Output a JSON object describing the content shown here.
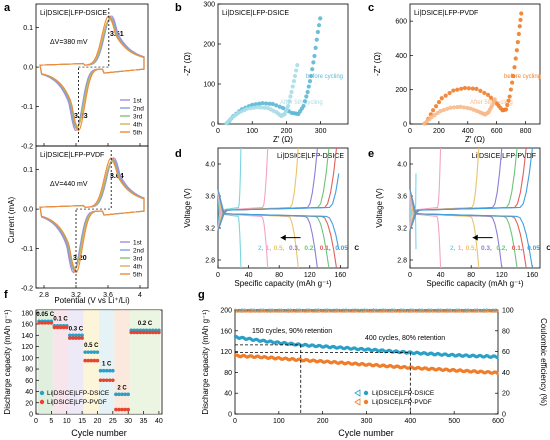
{
  "panels": {
    "a": {
      "label": "a",
      "top_title": "Li|DSICE|LFP-DSICE",
      "top_dv": "ΔV=380 mV",
      "top_peak_hi": "3.61",
      "top_peak_lo": "3.23",
      "bottom_title": "Li|DSICE|LFP-PVDF",
      "bottom_dv": "ΔV=440 mV",
      "bottom_peak_hi": "3.64",
      "bottom_peak_lo": "3.20",
      "ylabel": "Current (mA)",
      "xlabel": "Potential (V vs Li⁺/Li)",
      "legend": [
        "1st",
        "2nd",
        "3rd",
        "4th",
        "5th"
      ],
      "legend_colors": [
        "#a78bd6",
        "#7fa0e0",
        "#8bc07a",
        "#d0b35a",
        "#f08a3c"
      ]
    },
    "b": {
      "label": "b",
      "title": "Li|DSICE|LFP-DSICE",
      "ylabel": "-Z″ (Ω)",
      "xlabel": "Z′ (Ω)",
      "before": "before cycling",
      "after": "After 5th cycling",
      "color_before": "#5bb8d4",
      "color_after": "#a8dde8"
    },
    "c": {
      "label": "c",
      "title": "Li|DSICE|LFP-PVDF",
      "ylabel": "-Z″ (Ω)",
      "xlabel": "Z′ (Ω)",
      "before": "before cycling",
      "after": "After 5th cycling",
      "color_before": "#f07d2a",
      "color_after": "#f7b98a"
    },
    "d": {
      "label": "d",
      "title": "Li|DSICE|LFP-DSICE",
      "ylabel": "Voltage (V)",
      "xlabel": "Specific capacity (mAh g⁻¹)"
    },
    "e": {
      "label": "e",
      "title": "Li|DSICE|LFP-PVDF",
      "ylabel": "Voltage (V)",
      "xlabel": "Specific capacity (mAh g⁻¹)"
    },
    "f": {
      "label": "f",
      "ylabel": "Discharge capacity (mAh g⁻¹)",
      "xlabel": "Cycle number",
      "legend": [
        "Li|DSICE|LFP-DSICE",
        "Li|DSICE|LFP-PVDF"
      ]
    },
    "g": {
      "label": "g",
      "ylabel": "Discharge capacity (mAh g⁻¹)",
      "ylabel2": "Coulombic efficiency (%)",
      "xlabel": "Cycle number",
      "ann1": "150 cycles, 90% retention",
      "ann2": "400 cycles, 80% retention",
      "legend": [
        "Li|DSICE|LFP-DSICE",
        "Li|DSICE|LFP-PVDF"
      ]
    }
  },
  "chart_data": [
    {
      "id": "a-top",
      "type": "line",
      "title": "Li|DSICE|LFP-DSICE",
      "xlabel": "Potential (V vs Li⁺/Li)",
      "ylabel": "Current (mA)",
      "xlim": [
        2.7,
        4.1
      ],
      "ylim": [
        -0.2,
        0.16
      ],
      "xticks": [
        2.8,
        3.2,
        3.6,
        4.0
      ],
      "yticks": [
        -0.2,
        -0.1,
        0.0,
        0.1
      ],
      "annotations": [
        "ΔV=380 mV",
        "3.61",
        "3.23"
      ],
      "series": [
        {
          "name": "1st",
          "peak_ox": [
            3.61,
            0.128
          ],
          "peak_red": [
            3.23,
            -0.168
          ]
        },
        {
          "name": "2nd"
        },
        {
          "name": "3rd"
        },
        {
          "name": "4th"
        },
        {
          "name": "5th"
        }
      ]
    },
    {
      "id": "a-bottom",
      "type": "line",
      "title": "Li|DSICE|LFP-PVDF",
      "xlabel": "Potential (V vs Li⁺/Li)",
      "ylabel": "Current (mA)",
      "xlim": [
        2.7,
        4.1
      ],
      "ylim": [
        -0.2,
        0.16
      ],
      "xticks": [
        2.8,
        3.2,
        3.6,
        4.0
      ],
      "yticks": [
        -0.2,
        -0.1,
        0.0,
        0.1
      ],
      "annotations": [
        "ΔV=440 mV",
        "3.64",
        "3.20"
      ],
      "series": [
        {
          "name": "1st",
          "peak_ox": [
            3.64,
            0.128
          ],
          "peak_red": [
            3.2,
            -0.168
          ]
        },
        {
          "name": "2nd"
        },
        {
          "name": "3rd"
        },
        {
          "name": "4th"
        },
        {
          "name": "5th"
        }
      ]
    },
    {
      "id": "b",
      "type": "scatter",
      "title": "Li|DSICE|LFP-DSICE",
      "xlabel": "Z′ (Ω)",
      "ylabel": "-Z″ (Ω)",
      "xlim": [
        0,
        380
      ],
      "ylim": [
        0,
        300
      ],
      "xticks": [
        0,
        100,
        200,
        300
      ],
      "yticks": [
        0,
        100,
        200,
        300
      ],
      "series": [
        {
          "name": "before cycling",
          "points": [
            [
              28,
              2
            ],
            [
              45,
              20
            ],
            [
              70,
              37
            ],
            [
              100,
              48
            ],
            [
              130,
              52
            ],
            [
              160,
              50
            ],
            [
              190,
              40
            ],
            [
              215,
              28
            ],
            [
              235,
              25
            ],
            [
              250,
              45
            ],
            [
              262,
              80
            ],
            [
              272,
              120
            ],
            [
              282,
              170
            ],
            [
              292,
              230
            ],
            [
              302,
              280
            ]
          ]
        },
        {
          "name": "After 5th cycling",
          "points": [
            [
              25,
              2
            ],
            [
              40,
              15
            ],
            [
              60,
              28
            ],
            [
              85,
              38
            ],
            [
              115,
              42
            ],
            [
              145,
              40
            ],
            [
              170,
              30
            ],
            [
              185,
              20
            ],
            [
              195,
              25
            ],
            [
              205,
              45
            ],
            [
              215,
              80
            ],
            [
              225,
              120
            ],
            [
              235,
              160
            ]
          ]
        }
      ]
    },
    {
      "id": "c",
      "type": "scatter",
      "title": "Li|DSICE|LFP-PVDF",
      "xlabel": "Z′ (Ω)",
      "ylabel": "-Z″ (Ω)",
      "xlim": [
        0,
        900
      ],
      "ylim": [
        0,
        700
      ],
      "xticks": [
        0,
        200,
        400,
        600,
        800
      ],
      "yticks": [
        0,
        200,
        400,
        600
      ],
      "series": [
        {
          "name": "before cycling",
          "points": [
            [
              110,
              5
            ],
            [
              160,
              80
            ],
            [
              220,
              150
            ],
            [
              300,
              195
            ],
            [
              380,
              210
            ],
            [
              460,
              205
            ],
            [
              540,
              170
            ],
            [
              600,
              120
            ],
            [
              640,
              80
            ],
            [
              665,
              85
            ],
            [
              690,
              160
            ],
            [
              715,
              280
            ],
            [
              740,
              430
            ],
            [
              760,
              570
            ],
            [
              775,
              680
            ]
          ]
        },
        {
          "name": "After 5th cycling",
          "points": [
            [
              100,
              3
            ],
            [
              150,
              40
            ],
            [
              210,
              75
            ],
            [
              280,
              95
            ],
            [
              350,
              100
            ],
            [
              420,
              90
            ],
            [
              480,
              70
            ],
            [
              520,
              55
            ],
            [
              545,
              70
            ],
            [
              570,
              110
            ],
            [
              595,
              160
            ]
          ]
        }
      ]
    },
    {
      "id": "d",
      "type": "line",
      "title": "Li|DSICE|LFP-DSICE",
      "xlabel": "Specific capacity (mAh g⁻¹)",
      "ylabel": "Voltage (V)",
      "xlim": [
        0,
        170
      ],
      "ylim": [
        2.7,
        4.2
      ],
      "xticks": [
        0,
        40,
        80,
        120,
        160
      ],
      "yticks": [
        2.8,
        3.2,
        3.6,
        4.0
      ],
      "rate_labels": [
        "2",
        "1",
        "0.5",
        "0.3",
        "0.2",
        "0.1",
        "0.05",
        "C"
      ],
      "series": [
        {
          "name": "2",
          "capacity": 30,
          "color": "#7ad6e3"
        },
        {
          "name": "1",
          "capacity": 65,
          "color": "#f5a3c7"
        },
        {
          "name": "0.5",
          "capacity": 105,
          "color": "#e9c46a"
        },
        {
          "name": "0.3",
          "capacity": 130,
          "color": "#8d7ed8"
        },
        {
          "name": "0.2",
          "capacity": 145,
          "color": "#6fc47a"
        },
        {
          "name": "0.1",
          "capacity": 155,
          "color": "#e0625a"
        },
        {
          "name": "0.05",
          "capacity": 162,
          "color": "#3fa0e0"
        }
      ]
    },
    {
      "id": "e",
      "type": "line",
      "title": "Li|DSICE|LFP-PVDF",
      "xlabel": "Specific capacity (mAh g⁻¹)",
      "ylabel": "Voltage (V)",
      "xlim": [
        0,
        170
      ],
      "ylim": [
        2.7,
        4.2
      ],
      "xticks": [
        0,
        40,
        80,
        120,
        160
      ],
      "yticks": [
        2.8,
        3.2,
        3.6,
        4.0
      ],
      "rate_labels": [
        "2",
        "1",
        "0.5",
        "0.3",
        "0.2",
        "0.1",
        "0.05",
        "C"
      ],
      "series": [
        {
          "name": "2",
          "capacity": 8,
          "color": "#7ad6e3"
        },
        {
          "name": "1",
          "capacity": 40,
          "color": "#f5a3c7"
        },
        {
          "name": "0.5",
          "capacity": 90,
          "color": "#e9c46a"
        },
        {
          "name": "0.3",
          "capacity": 120,
          "color": "#8d7ed8"
        },
        {
          "name": "0.2",
          "capacity": 140,
          "color": "#6fc47a"
        },
        {
          "name": "0.1",
          "capacity": 152,
          "color": "#e0625a"
        },
        {
          "name": "0.05",
          "capacity": 160,
          "color": "#3fa0e0"
        }
      ]
    },
    {
      "id": "f",
      "type": "scatter",
      "xlabel": "Cycle number",
      "ylabel": "Discharge capacity (mAh g⁻¹)",
      "xlim": [
        0,
        41
      ],
      "ylim": [
        0,
        185
      ],
      "xticks": [
        0,
        5,
        10,
        15,
        20,
        25,
        30,
        35,
        40
      ],
      "yticks": [
        0,
        20,
        40,
        60,
        80,
        100,
        120,
        140,
        160,
        180
      ],
      "rate_labels": [
        "0.05 C",
        "0.1 C",
        "0.3 C",
        "0.5 C",
        "1 C",
        "2 C",
        "0.2 C"
      ],
      "segments": [
        {
          "rate": "0.05 C",
          "cycles": [
            1,
            5
          ],
          "dsice": 165,
          "pvdf": 162
        },
        {
          "rate": "0.1 C",
          "cycles": [
            6,
            10
          ],
          "dsice": 157,
          "pvdf": 154
        },
        {
          "rate": "0.3 C",
          "cycles": [
            11,
            15
          ],
          "dsice": 140,
          "pvdf": 135
        },
        {
          "rate": "0.5 C",
          "cycles": [
            16,
            20
          ],
          "dsice": 110,
          "pvdf": 95
        },
        {
          "rate": "1 C",
          "cycles": [
            21,
            25
          ],
          "dsice": 77,
          "pvdf": 60
        },
        {
          "rate": "2 C",
          "cycles": [
            26,
            30
          ],
          "dsice": 35,
          "pvdf": 8
        },
        {
          "rate": "0.2 C",
          "cycles": [
            31,
            40
          ],
          "dsice": 149,
          "pvdf": 145
        }
      ],
      "series": [
        {
          "name": "Li|DSICE|LFP-DSICE"
        },
        {
          "name": "Li|DSICE|LFP-PVDF"
        }
      ]
    },
    {
      "id": "g",
      "type": "scatter",
      "xlabel": "Cycle number",
      "ylabel": "Discharge capacity (mAh g⁻¹)",
      "ylabel2": "Coulombic efficiency (%)",
      "xlim": [
        0,
        600
      ],
      "ylim": [
        0,
        200
      ],
      "ylim2": [
        0,
        100
      ],
      "xticks": [
        0,
        100,
        200,
        300,
        400,
        500,
        600
      ],
      "yticks": [
        0,
        40,
        80,
        120,
        160,
        200
      ],
      "yticks2": [
        0,
        20,
        40,
        60,
        80,
        100
      ],
      "annotations": [
        "150 cycles, 90% retention",
        "400 cycles, 80% retention"
      ],
      "series": [
        {
          "name": "Li|DSICE|LFP-DSICE",
          "capacity_points": [
            [
              1,
              148
            ],
            [
              50,
              142
            ],
            [
              100,
              137
            ],
            [
              150,
              133
            ],
            [
              200,
              130
            ],
            [
              300,
              124
            ],
            [
              400,
              118
            ],
            [
              500,
              113
            ],
            [
              600,
              110
            ]
          ],
          "ce": 99.5
        },
        {
          "name": "Li|DSICE|LFP-PVDF",
          "capacity_points": [
            [
              1,
              112
            ],
            [
              50,
              110
            ],
            [
              100,
              107
            ],
            [
              150,
              104
            ],
            [
              200,
              101
            ],
            [
              300,
              95
            ],
            [
              400,
              89
            ],
            [
              500,
              84
            ],
            [
              600,
              79
            ]
          ],
          "ce": 99.0
        }
      ]
    }
  ]
}
